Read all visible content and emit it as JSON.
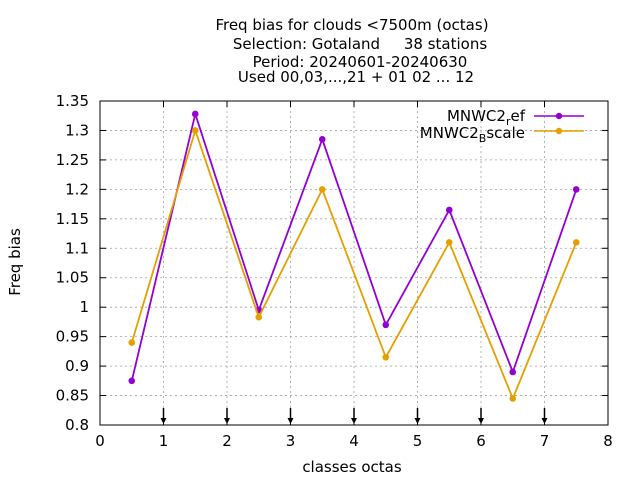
{
  "chart_data": {
    "type": "line",
    "title_lines": [
      "Freq bias  for clouds <7500m (octas)",
      "Selection: Gotaland     38 stations",
      "Period: 20240601-20240630",
      "Used 00,03,...,21 + 01 02 ... 12"
    ],
    "xlabel": "classes octas",
    "ylabel": "Freq bias",
    "xlim": [
      0,
      8
    ],
    "ylim": [
      0.8,
      1.35
    ],
    "x_ticks": [
      0,
      1,
      2,
      3,
      4,
      5,
      6,
      7,
      8
    ],
    "x_tick_labels": [
      "0",
      "1",
      "2",
      "3",
      "4",
      "5",
      "6",
      "7",
      "8"
    ],
    "y_ticks": [
      0.8,
      0.85,
      0.9,
      0.95,
      1.0,
      1.05,
      1.1,
      1.15,
      1.2,
      1.25,
      1.3,
      1.35
    ],
    "y_tick_labels": [
      "0.8",
      "0.85",
      "0.9",
      "0.95",
      "1",
      "1.05",
      "1.1",
      "1.15",
      "1.2",
      "1.25",
      "1.3",
      "1.35"
    ],
    "grid": true,
    "legend_position": "top-right",
    "reference_arrows_x": [
      1,
      2,
      3,
      4,
      5,
      6,
      7
    ],
    "x": [
      0.5,
      1.5,
      2.5,
      3.5,
      4.5,
      5.5,
      6.5,
      7.5
    ],
    "series": [
      {
        "name": "MNWC2_ref",
        "legend_main": "MNWC2",
        "legend_sub": "r",
        "legend_rest": "ef",
        "color": "#9400d3",
        "values": [
          0.875,
          1.328,
          0.995,
          1.285,
          0.97,
          1.165,
          0.89,
          1.2
        ]
      },
      {
        "name": "MNWC2_Bscale",
        "legend_main": "MNWC2",
        "legend_sub": "B",
        "legend_rest": "scale",
        "color": "#e69f00",
        "values": [
          0.94,
          1.3,
          0.983,
          1.2,
          0.915,
          1.11,
          0.845,
          1.11
        ]
      }
    ]
  }
}
